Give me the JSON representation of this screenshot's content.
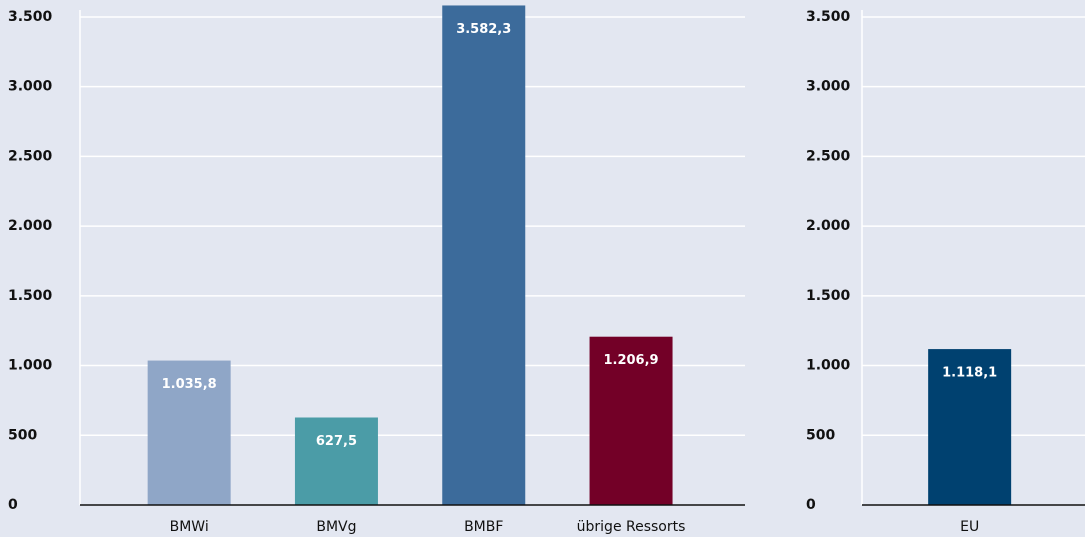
{
  "chart_data": [
    {
      "type": "bar",
      "categories": [
        "BMWi",
        "BMVg",
        "BMBF",
        "übrige Ressorts"
      ],
      "values": [
        1035.8,
        627.5,
        3582.3,
        1206.9
      ],
      "value_labels": [
        "1.035,8",
        "627,5",
        "3.582,3",
        "1.206,9"
      ],
      "colors": [
        "#8fa6c7",
        "#4b9ca7",
        "#3c6b9b",
        "#730027"
      ],
      "ylim": [
        0,
        3600
      ],
      "yticks": [
        0,
        500,
        {
          "value": 1000,
          "label": "1.000"
        },
        {
          "value": 1500,
          "label": "1.500"
        },
        {
          "value": 2000,
          "label": "2.000"
        },
        {
          "value": 2500,
          "label": "2.500"
        },
        {
          "value": 3000,
          "label": "3.000"
        },
        {
          "value": 3500,
          "label": "3.500"
        }
      ],
      "grid": true
    },
    {
      "type": "bar",
      "categories": [
        "EU"
      ],
      "values": [
        1118.1
      ],
      "value_labels": [
        "1.118,1"
      ],
      "colors": [
        "#004170"
      ],
      "ylim": [
        0,
        3600
      ],
      "yticks": [
        0,
        500,
        {
          "value": 1000,
          "label": "1.000"
        },
        {
          "value": 1500,
          "label": "1.500"
        },
        {
          "value": 2000,
          "label": "2.000"
        },
        {
          "value": 2500,
          "label": "2.500"
        },
        {
          "value": 3000,
          "label": "3.000"
        },
        {
          "value": 3500,
          "label": "3.500"
        }
      ],
      "grid": true
    }
  ]
}
